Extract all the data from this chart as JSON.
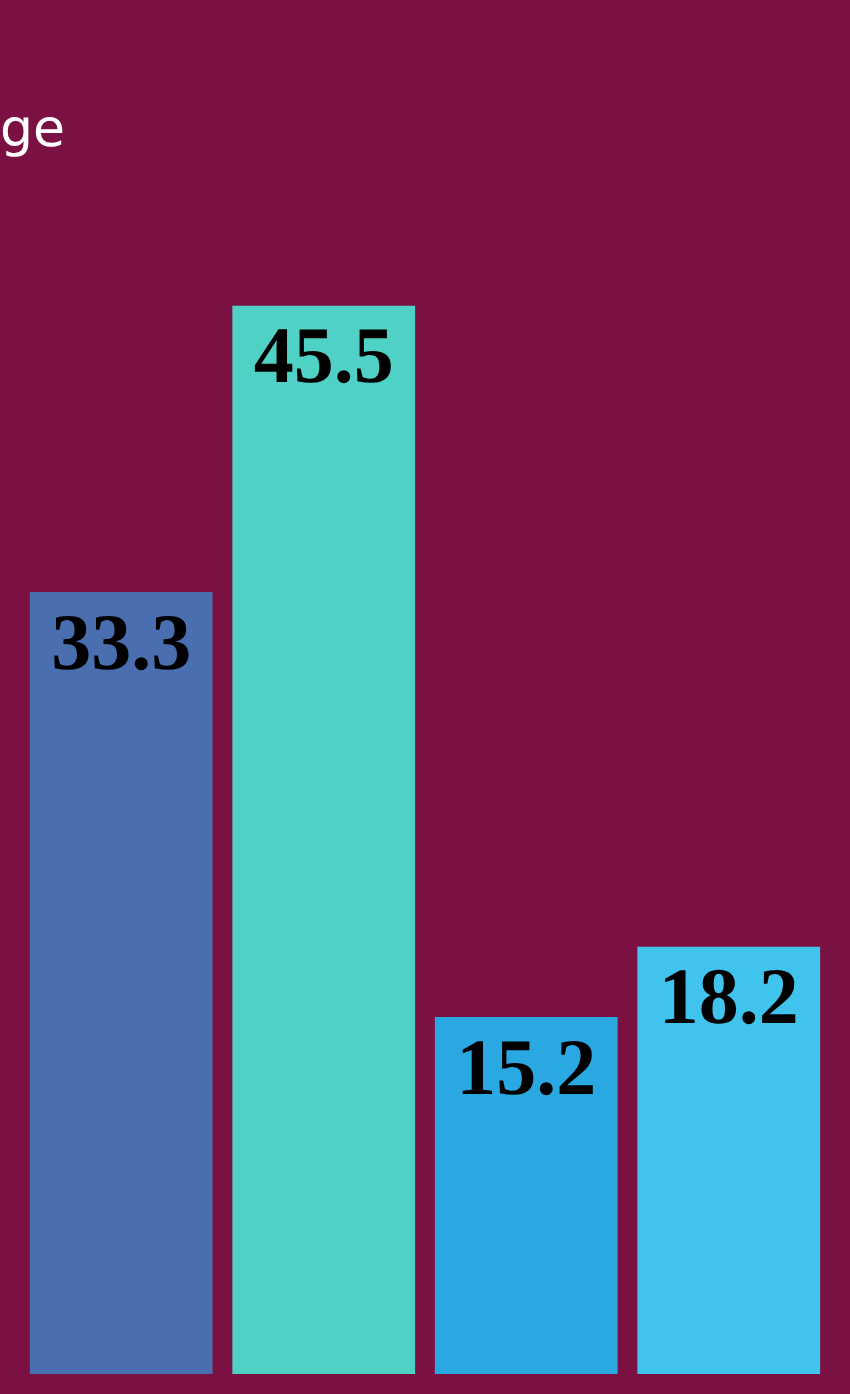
{
  "chart_data": {
    "type": "bar",
    "annotations": [
      "ge"
    ],
    "categories": [
      null,
      null,
      null,
      null
    ],
    "values": [
      33.3,
      45.5,
      15.2,
      18.2
    ],
    "colors": [
      "#4a6fb0",
      "#4fd1c5",
      "#2aa8e2",
      "#40c4ee"
    ],
    "data_labels": true,
    "legend": false,
    "tick_labels": false
  }
}
